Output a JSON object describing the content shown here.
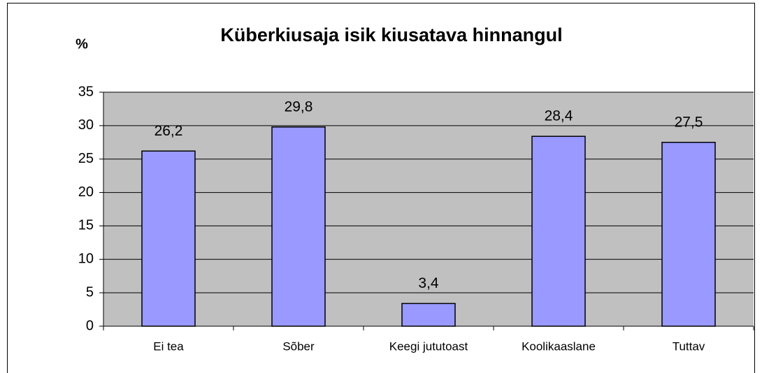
{
  "chart_data": {
    "type": "bar",
    "title": "Küberkiusaja isik kiusatava hinnangul",
    "y_label": "%",
    "categories": [
      "Ei tea",
      "Sõber",
      "Keegi jututoast",
      "Koolikaaslane",
      "Tuttav"
    ],
    "values": [
      26.2,
      29.8,
      3.4,
      28.4,
      27.5
    ],
    "value_labels": [
      "26,2",
      "29,8",
      "3,4",
      "28,4",
      "27,5"
    ],
    "color": "#9999ff",
    "plot_background": "#c0c0c0",
    "ylim": [
      0,
      35
    ],
    "yticks": [
      0,
      5,
      10,
      15,
      20,
      25,
      30,
      35
    ],
    "grid": true
  }
}
